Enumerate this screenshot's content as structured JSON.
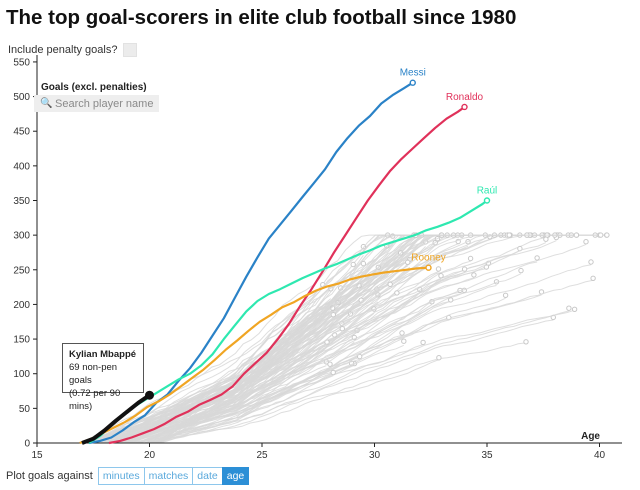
{
  "title": "The top goal-scorers in elite club football since 1980",
  "controls": {
    "penalty_label": "Include penalty goals?",
    "search_placeholder": "Search player name",
    "plot_label": "Plot goals against",
    "plot_options": [
      "minutes",
      "matches",
      "date",
      "age"
    ],
    "plot_active": "age"
  },
  "tooltip": {
    "name": "Kylian Mbappé",
    "line1": "69 non-pen goals",
    "line2": "(0.72 per 90 mins)"
  },
  "colors": {
    "messi": "#2a82c7",
    "ronaldo": "#e0315a",
    "raul": "#2ee8b0",
    "rooney": "#f0a523",
    "mbappe": "#111111",
    "background_lines": "#d8d8d8"
  },
  "chart_data": {
    "type": "line",
    "title": "The top goal-scorers in elite club football since 1980",
    "xlabel": "Age",
    "ylabel": "Goals (excl. penalties)",
    "xlim": [
      15,
      41
    ],
    "ylim": [
      0,
      560
    ],
    "xticks": [
      15,
      20,
      25,
      30,
      35,
      40
    ],
    "yticks": [
      0,
      50,
      100,
      150,
      200,
      250,
      300,
      350,
      400,
      450,
      500,
      550
    ],
    "series": [
      {
        "name": "Messi",
        "label_pos": "top",
        "x": [
          17.3,
          17.8,
          18.3,
          18.8,
          19.3,
          19.8,
          20.3,
          20.8,
          21.3,
          21.8,
          22.3,
          22.8,
          23.3,
          23.8,
          24.3,
          24.8,
          25.3,
          25.8,
          26.3,
          26.8,
          27.3,
          27.8,
          28.3,
          28.8,
          29.3,
          29.8,
          30.3,
          30.8,
          31.3,
          31.7
        ],
        "y": [
          0,
          3,
          8,
          18,
          30,
          40,
          58,
          70,
          90,
          108,
          130,
          155,
          180,
          210,
          240,
          268,
          295,
          315,
          335,
          355,
          375,
          395,
          420,
          440,
          458,
          472,
          490,
          502,
          512,
          520
        ]
      },
      {
        "name": "Ronaldo",
        "label_pos": "top",
        "x": [
          18.2,
          18.7,
          19.2,
          19.7,
          20.2,
          20.7,
          21.2,
          21.7,
          22.2,
          22.7,
          23.2,
          23.7,
          24.2,
          24.7,
          25.2,
          25.7,
          26.2,
          26.7,
          27.2,
          27.7,
          28.2,
          28.7,
          29.2,
          29.7,
          30.2,
          30.7,
          31.2,
          31.7,
          32.2,
          32.7,
          33.2,
          33.7,
          34.0
        ],
        "y": [
          0,
          3,
          8,
          14,
          20,
          28,
          38,
          45,
          55,
          62,
          70,
          82,
          100,
          115,
          130,
          150,
          172,
          198,
          222,
          248,
          275,
          300,
          325,
          350,
          372,
          393,
          410,
          425,
          440,
          455,
          468,
          478,
          485
        ]
      },
      {
        "name": "Raúl",
        "label_pos": "top",
        "x": [
          17.3,
          17.8,
          18.3,
          18.8,
          19.3,
          19.8,
          20.3,
          20.8,
          21.3,
          21.8,
          22.3,
          22.8,
          23.3,
          23.8,
          24.3,
          24.8,
          25.3,
          25.8,
          26.3,
          26.8,
          27.3,
          27.8,
          28.3,
          28.8,
          29.3,
          29.8,
          30.3,
          30.8,
          31.3,
          31.8,
          32.3,
          32.8,
          33.3,
          33.8,
          34.3,
          34.8,
          35.0
        ],
        "y": [
          0,
          10,
          25,
          40,
          52,
          62,
          72,
          82,
          92,
          100,
          112,
          128,
          150,
          170,
          190,
          205,
          215,
          222,
          230,
          238,
          245,
          252,
          258,
          265,
          272,
          278,
          285,
          290,
          295,
          300,
          307,
          312,
          318,
          325,
          335,
          345,
          350
        ]
      },
      {
        "name": "Rooney",
        "label_pos": "top",
        "x": [
          16.9,
          17.4,
          17.9,
          18.4,
          18.9,
          19.4,
          19.9,
          20.4,
          20.9,
          21.4,
          21.9,
          22.4,
          22.9,
          23.4,
          23.9,
          24.4,
          24.9,
          25.4,
          25.9,
          26.4,
          26.9,
          27.4,
          27.9,
          28.4,
          28.9,
          29.4,
          29.9,
          30.4,
          30.9,
          31.4,
          31.9,
          32.4
        ],
        "y": [
          0,
          6,
          14,
          22,
          30,
          40,
          52,
          60,
          70,
          82,
          94,
          106,
          120,
          135,
          148,
          162,
          175,
          185,
          196,
          203,
          212,
          220,
          226,
          230,
          236,
          240,
          243,
          246,
          248,
          250,
          252,
          253
        ]
      },
      {
        "name": "Kylian Mbappé",
        "label_pos": "none",
        "x": [
          17.0,
          17.5,
          18.0,
          18.5,
          19.0,
          19.5,
          20.0
        ],
        "y": [
          0,
          6,
          18,
          32,
          45,
          58,
          69
        ]
      }
    ],
    "annotations": {
      "highlight_point": {
        "x": 20.0,
        "y": 69
      }
    }
  }
}
